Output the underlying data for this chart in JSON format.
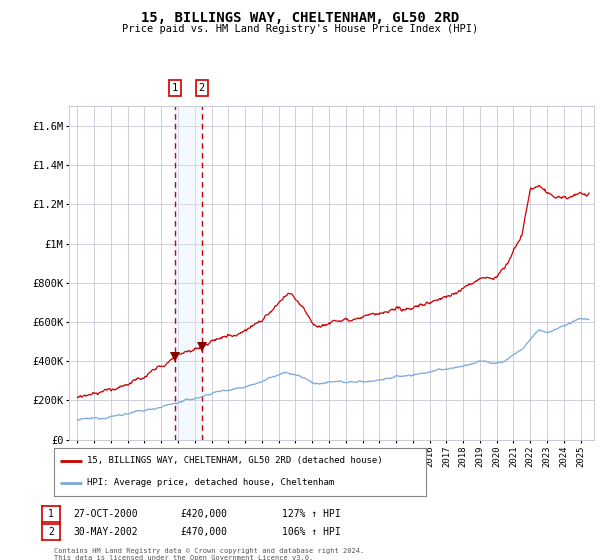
{
  "title": "15, BILLINGS WAY, CHELTENHAM, GL50 2RD",
  "subtitle": "Price paid vs. HM Land Registry's House Price Index (HPI)",
  "legend_line1": "15, BILLINGS WAY, CHELTENHAM, GL50 2RD (detached house)",
  "legend_line2": "HPI: Average price, detached house, Cheltenham",
  "transaction1_date": "27-OCT-2000",
  "transaction1_price": 420000,
  "transaction1_hpi": "127% ↑ HPI",
  "transaction2_date": "30-MAY-2002",
  "transaction2_price": 470000,
  "transaction2_hpi": "106% ↑ HPI",
  "hpi_color": "#7aabdc",
  "price_color": "#cc0000",
  "marker_color": "#880000",
  "vline_color": "#cc0000",
  "band_color": "#ddeeff",
  "grid_color": "#c8c8d8",
  "background_color": "#ffffff",
  "ylim": [
    0,
    1700000
  ],
  "yticks": [
    0,
    200000,
    400000,
    600000,
    800000,
    1000000,
    1200000,
    1400000,
    1600000
  ],
  "ytick_labels": [
    "£0",
    "£200K",
    "£400K",
    "£600K",
    "£800K",
    "£1M",
    "£1.2M",
    "£1.4M",
    "£1.6M"
  ],
  "footer": "Contains HM Land Registry data © Crown copyright and database right 2024.\nThis data is licensed under the Open Government Licence v3.0.",
  "transaction1_x": 2000.82,
  "transaction2_x": 2002.42
}
